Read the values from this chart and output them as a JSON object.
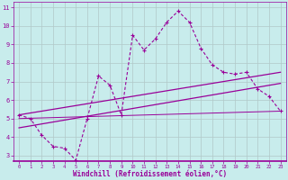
{
  "xlabel": "Windchill (Refroidissement éolien,°C)",
  "bg_color": "#c8ecec",
  "line_color": "#990099",
  "grid_color": "#b0c8c8",
  "spine_color": "#990099",
  "xlim": [
    -0.5,
    23.5
  ],
  "ylim": [
    2.7,
    11.3
  ],
  "xticks": [
    0,
    1,
    2,
    3,
    4,
    5,
    6,
    7,
    8,
    9,
    10,
    11,
    12,
    13,
    14,
    15,
    16,
    17,
    18,
    19,
    20,
    21,
    22,
    23
  ],
  "yticks": [
    3,
    4,
    5,
    6,
    7,
    8,
    9,
    10,
    11
  ],
  "data_x": [
    0,
    1,
    2,
    3,
    4,
    5,
    6,
    7,
    8,
    9,
    10,
    11,
    12,
    13,
    14,
    15,
    16,
    17,
    18,
    19,
    20,
    21,
    22,
    23
  ],
  "data_y": [
    5.2,
    5.0,
    4.1,
    3.5,
    3.4,
    2.75,
    5.0,
    7.3,
    6.8,
    5.2,
    9.5,
    8.7,
    9.3,
    10.2,
    10.8,
    10.2,
    8.8,
    7.9,
    7.5,
    7.4,
    7.5,
    6.6,
    6.2,
    5.4
  ],
  "line1_x": [
    0,
    23
  ],
  "line1_y": [
    5.2,
    7.5
  ],
  "line2_x": [
    0,
    23
  ],
  "line2_y": [
    4.5,
    6.9
  ],
  "line3_x": [
    0,
    23
  ],
  "line3_y": [
    5.0,
    5.4
  ]
}
